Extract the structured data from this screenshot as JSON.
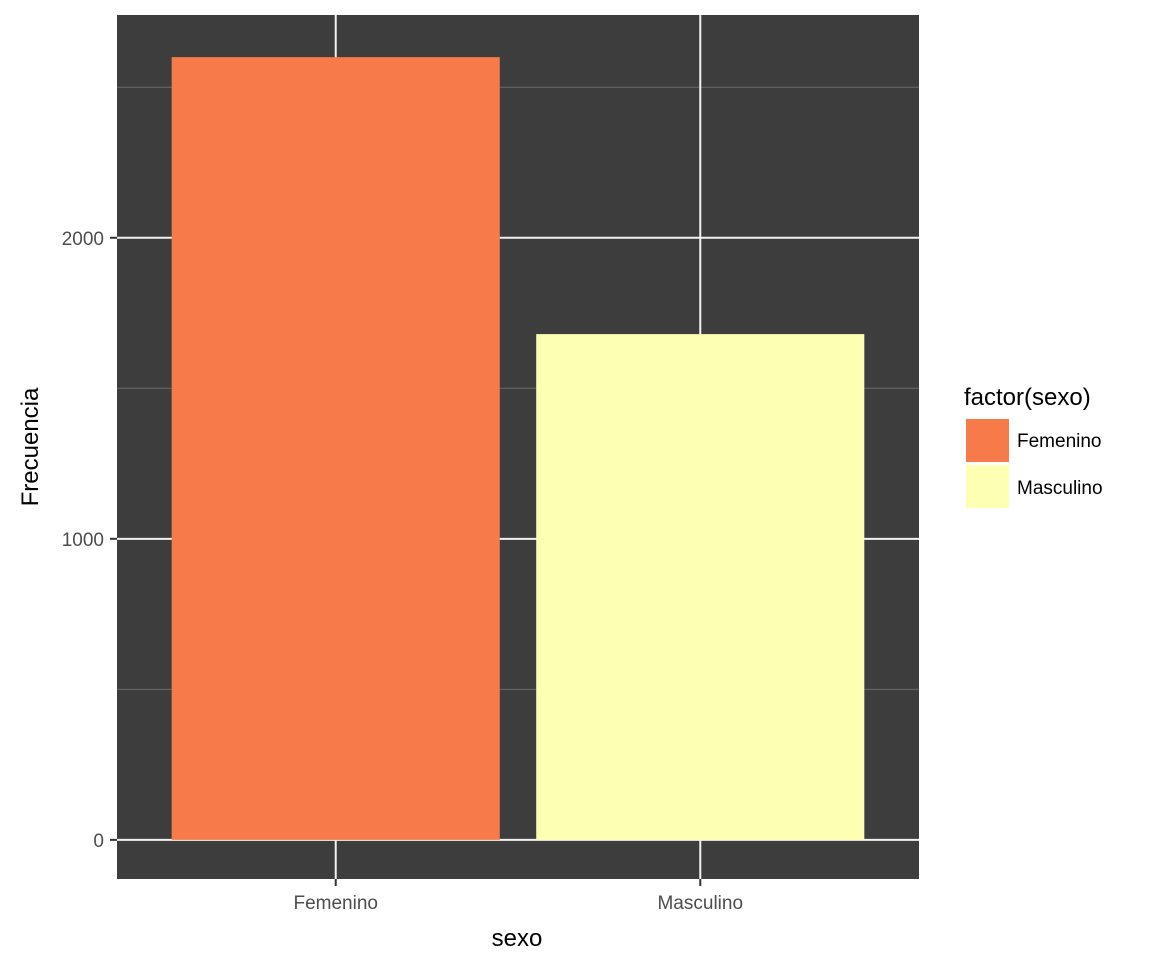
{
  "chart_data": {
    "type": "bar",
    "categories": [
      "Femenino",
      "Masculino"
    ],
    "values": [
      2600,
      1680
    ],
    "xlabel": "sexo",
    "ylabel": "Frecuencia",
    "ylim": [
      -130,
      2740
    ],
    "yticks": [
      0,
      1000,
      2000
    ],
    "yticks_labels": [
      "0",
      "1000",
      "2000"
    ],
    "y_minor_gridlines": [
      500,
      1500,
      2500
    ],
    "grid": true,
    "legend": {
      "title": "factor(sexo)",
      "placement": "right",
      "entries": [
        "Femenino",
        "Masculino"
      ]
    },
    "colors": {
      "Femenino": "#F77A4A",
      "Masculino": "#FDFFB3",
      "panel_background": "#3D3D3D",
      "grid_major": "#F2F2F2",
      "grid_minor": "#6A6A6A"
    }
  }
}
